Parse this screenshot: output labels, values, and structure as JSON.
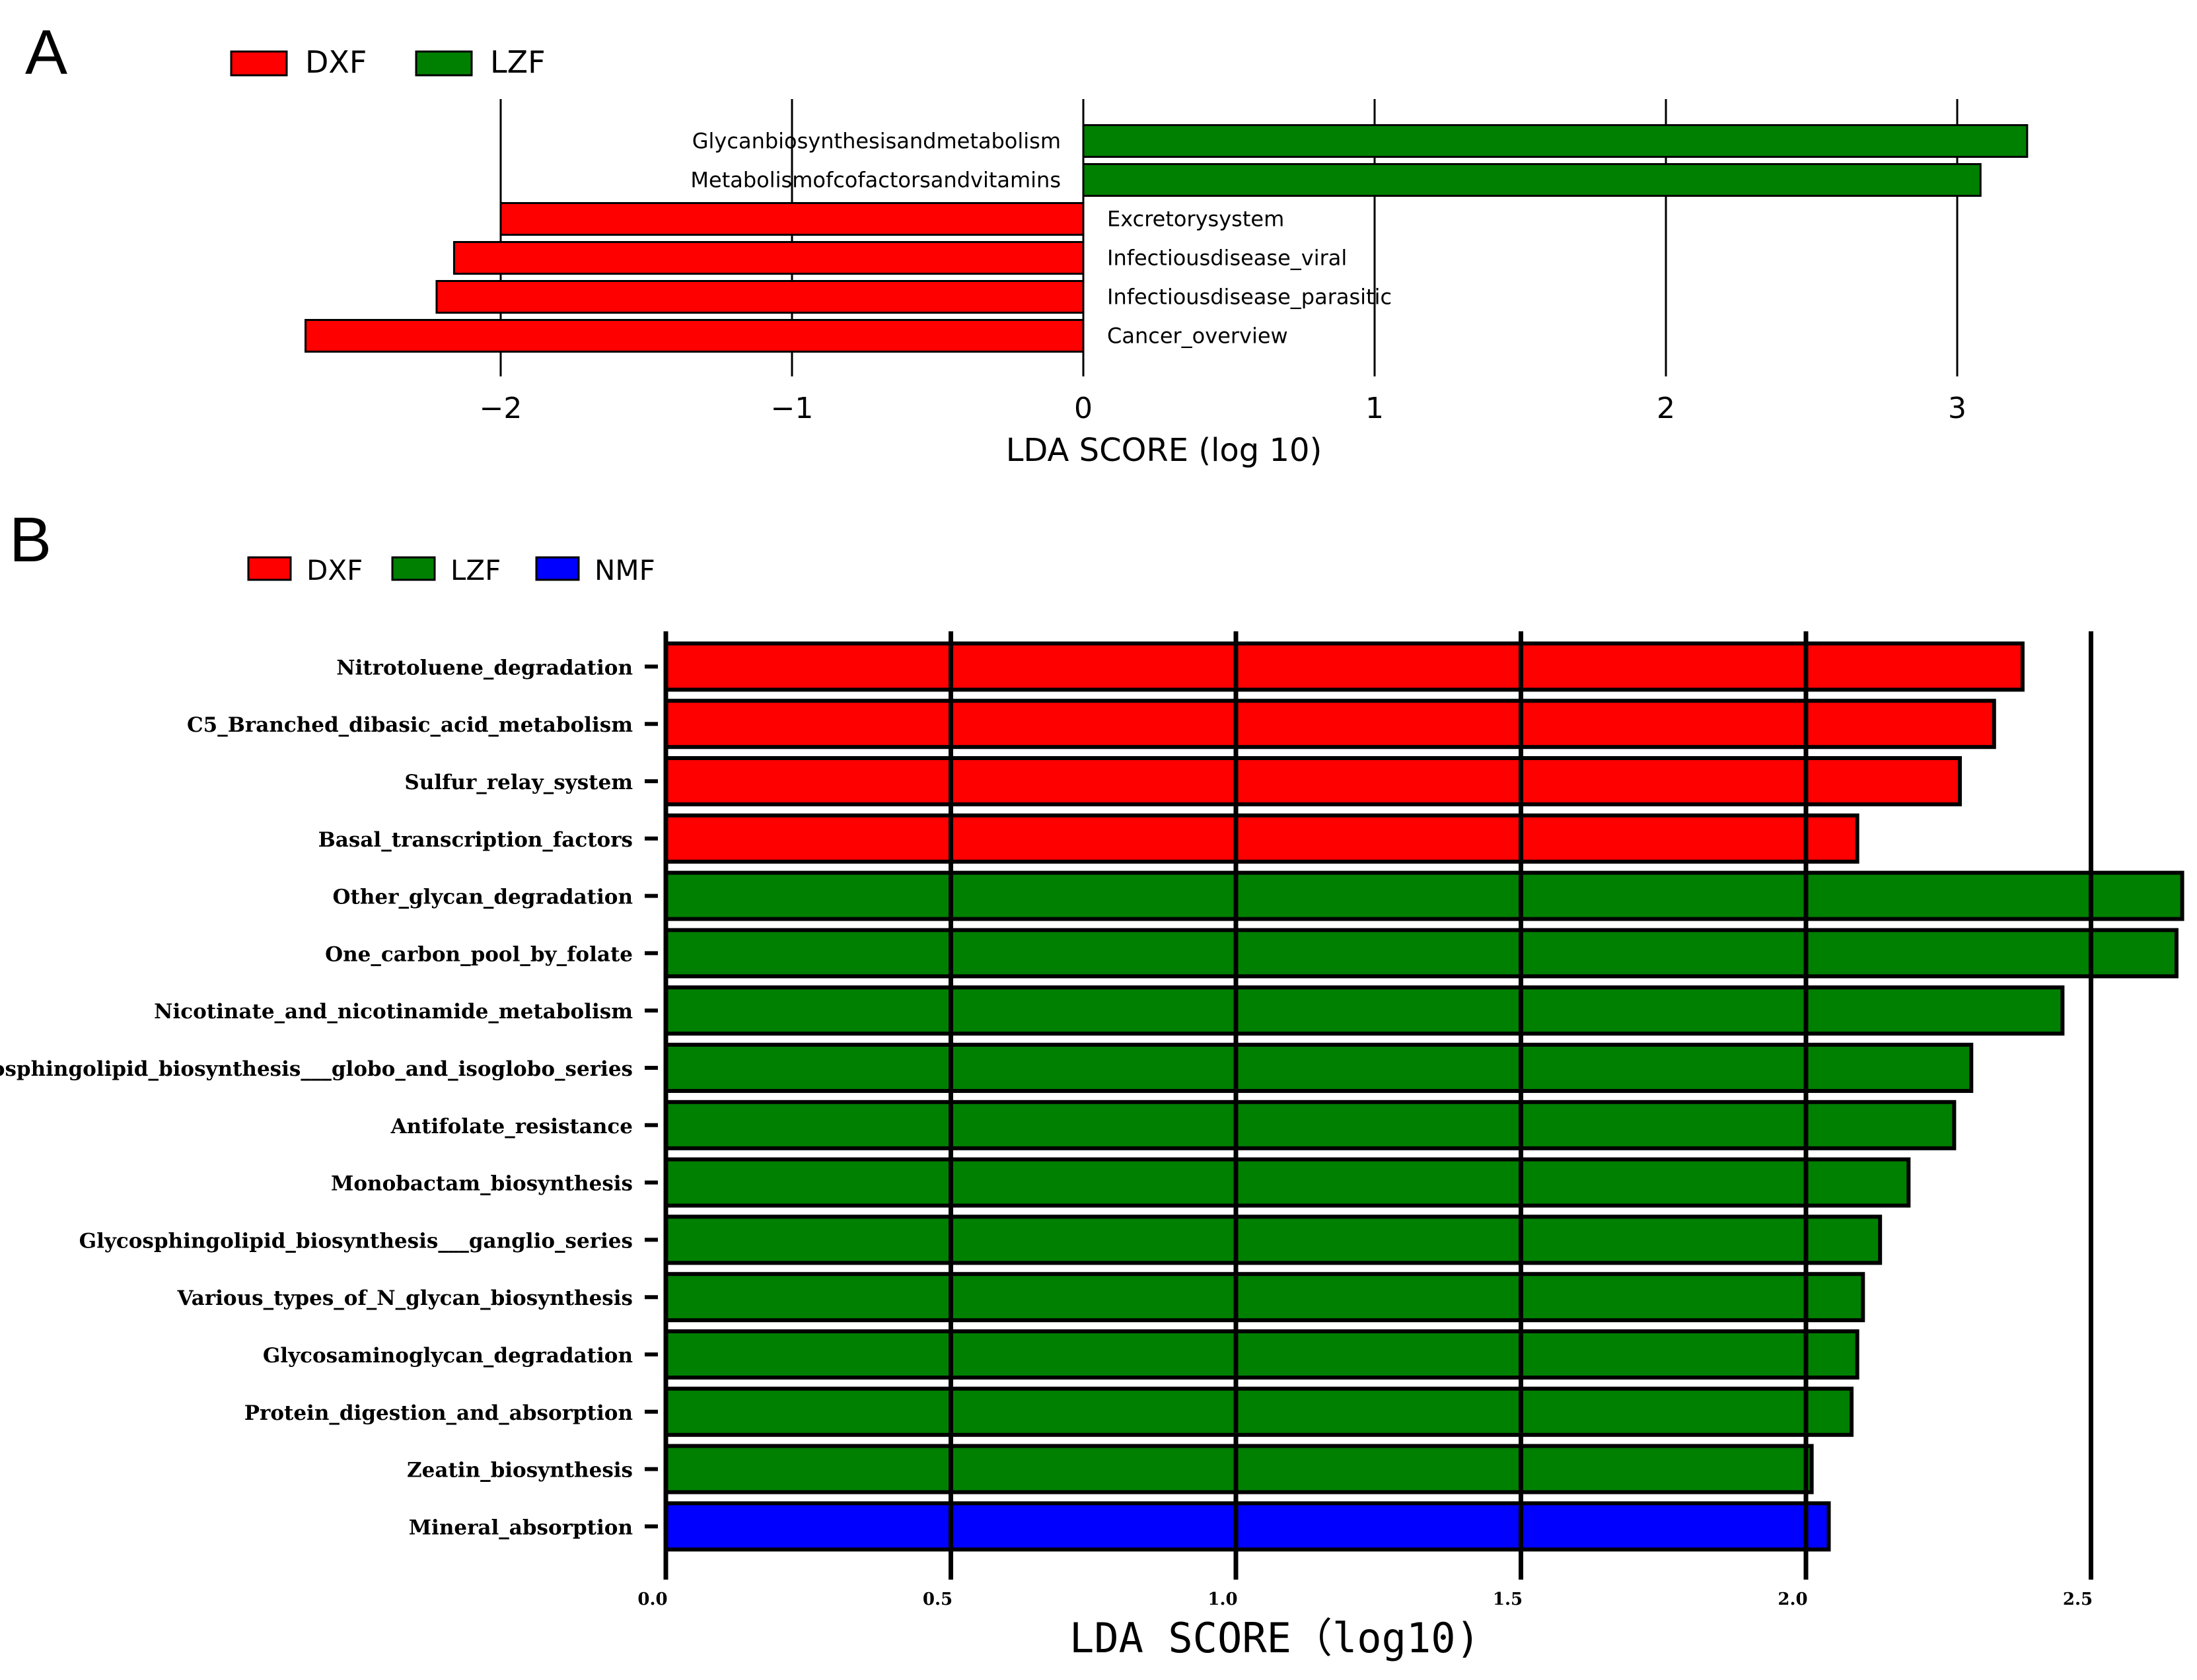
{
  "colors": {
    "DXF": "#ff0000",
    "LZF": "#008000",
    "NMF": "#0000ff"
  },
  "chart_data": [
    {
      "panel": "A",
      "type": "bar",
      "orientation": "horizontal",
      "legend": [
        "DXF",
        "LZF"
      ],
      "legend_position": "top-left",
      "xlabel": "LDA SCORE (log 10)",
      "xlim": [
        -2.6,
        3.4
      ],
      "xticks": [
        -2,
        -1,
        0,
        1,
        2,
        3
      ],
      "xtick_labels": [
        "−2",
        "−1",
        "0",
        "1",
        "2",
        "3"
      ],
      "grid": true,
      "bars": [
        {
          "label": "Glycanbiosynthesisandmetabolism",
          "value": 3.24,
          "group": "LZF"
        },
        {
          "label": "Metabolismofcofactorsandvitamins",
          "value": 3.08,
          "group": "LZF"
        },
        {
          "label": "Excretorysystem",
          "value": -2.0,
          "group": "DXF"
        },
        {
          "label": "Infectiousdisease_viral",
          "value": -2.16,
          "group": "DXF"
        },
        {
          "label": "Infectiousdisease_parasitic",
          "value": -2.22,
          "group": "DXF"
        },
        {
          "label": "Cancer_overview",
          "value": -2.67,
          "group": "DXF"
        }
      ]
    },
    {
      "panel": "B",
      "type": "bar",
      "orientation": "horizontal",
      "legend": [
        "DXF",
        "LZF",
        "NMF"
      ],
      "legend_position": "top-left",
      "xlabel": "LDA SCORE（log10)",
      "xlim": [
        0,
        2.66
      ],
      "xticks": [
        0,
        0.5,
        1,
        1.5,
        2,
        2.5
      ],
      "xtick_labels": [
        "0.0",
        "0.5",
        "1.0",
        "1.5",
        "2.0",
        "2.5"
      ],
      "grid": true,
      "bars": [
        {
          "label": "Nitrotoluene_degradation",
          "value": 2.38,
          "group": "DXF"
        },
        {
          "label": "C5_Branched_dibasic_acid_metabolism",
          "value": 2.33,
          "group": "DXF"
        },
        {
          "label": "Sulfur_relay_system",
          "value": 2.27,
          "group": "DXF"
        },
        {
          "label": "Basal_transcription_factors",
          "value": 2.09,
          "group": "DXF"
        },
        {
          "label": "Other_glycan_degradation",
          "value": 2.66,
          "group": "LZF"
        },
        {
          "label": "One_carbon_pool_by_folate",
          "value": 2.65,
          "group": "LZF"
        },
        {
          "label": "Nicotinate_and_nicotinamide_metabolism",
          "value": 2.45,
          "group": "LZF"
        },
        {
          "label": "Glycosphingolipid_biosynthesis___globo_and_isoglobo_series",
          "value": 2.29,
          "group": "LZF"
        },
        {
          "label": "Antifolate_resistance",
          "value": 2.26,
          "group": "LZF"
        },
        {
          "label": "Monobactam_biosynthesis",
          "value": 2.18,
          "group": "LZF"
        },
        {
          "label": "Glycosphingolipid_biosynthesis___ganglio_series",
          "value": 2.13,
          "group": "LZF"
        },
        {
          "label": "Various_types_of_N_glycan_biosynthesis",
          "value": 2.1,
          "group": "LZF"
        },
        {
          "label": "Glycosaminoglycan_degradation",
          "value": 2.09,
          "group": "LZF"
        },
        {
          "label": "Protein_digestion_and_absorption",
          "value": 2.08,
          "group": "LZF"
        },
        {
          "label": "Zeatin_biosynthesis",
          "value": 2.01,
          "group": "LZF"
        },
        {
          "label": "Mineral_absorption",
          "value": 2.04,
          "group": "NMF"
        }
      ]
    }
  ]
}
